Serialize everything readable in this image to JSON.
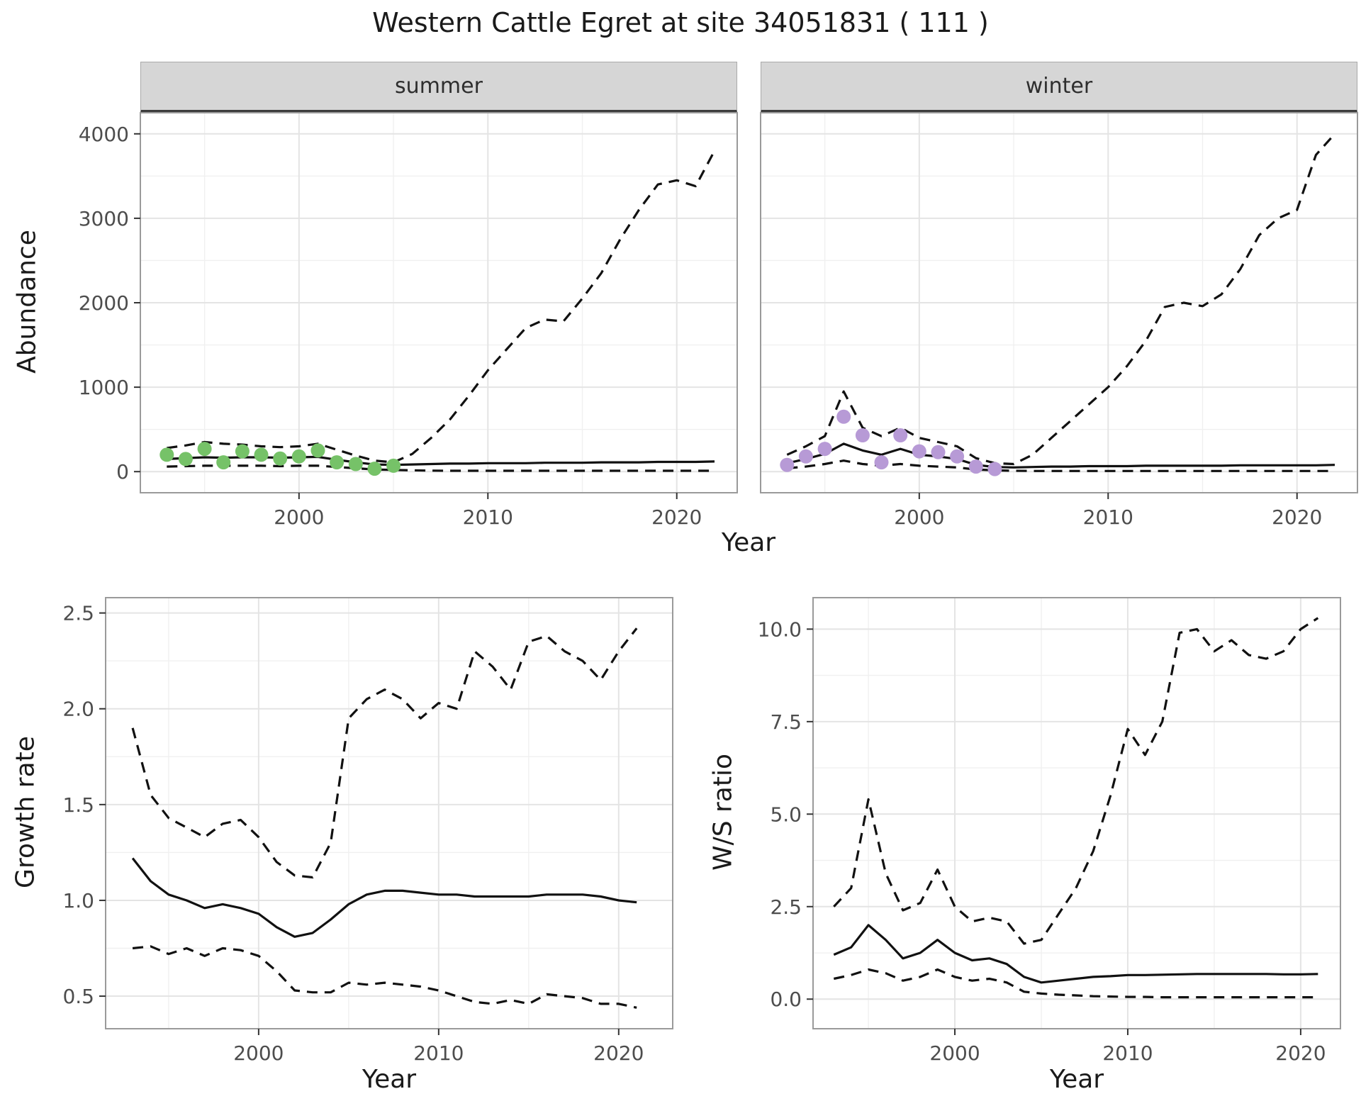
{
  "title": "Western Cattle Egret at site 34051831 ( 111 )",
  "colors": {
    "summer_points": "#76c268",
    "winter_points": "#b79ad6",
    "line": "#111111",
    "strip_background": "#d6d6d6",
    "grid_major": "#e4e4e4",
    "grid_minor": "#f0f0f0",
    "panel_border": "#9a9a9a",
    "tick_text": "#4d4d4d"
  },
  "chart_data": [
    {
      "id": "summer",
      "type": "line",
      "facet": "summer",
      "xlabel": "Year",
      "ylabel": "Abundance",
      "xlim": [
        1991.6,
        2023.2
      ],
      "ylim": [
        -250,
        4250
      ],
      "xticks": [
        2000,
        2010,
        2020
      ],
      "xtick_labels": [
        "2000",
        "2010",
        "2020"
      ],
      "yticks": [
        0,
        1000,
        2000,
        3000,
        4000
      ],
      "ytick_labels": [
        "0",
        "1000",
        "2000",
        "3000",
        "4000"
      ],
      "grid": true,
      "series": [
        {
          "name": "upper-ci",
          "style": "dashed",
          "x": [
            1993,
            1994,
            1995,
            1996,
            1997,
            1998,
            1999,
            2000,
            2001,
            2002,
            2003,
            2004,
            2005,
            2006,
            2007,
            2008,
            2009,
            2010,
            2011,
            2012,
            2013,
            2014,
            2015,
            2016,
            2017,
            2018,
            2019,
            2020,
            2021,
            2022
          ],
          "y": [
            280,
            310,
            350,
            330,
            320,
            300,
            290,
            300,
            330,
            260,
            190,
            130,
            110,
            210,
            400,
            620,
            900,
            1200,
            1450,
            1700,
            1800,
            1780,
            2050,
            2350,
            2750,
            3100,
            3400,
            3450,
            3380,
            3800
          ]
        },
        {
          "name": "median",
          "style": "solid",
          "x": [
            1993,
            1994,
            1995,
            1996,
            1997,
            1998,
            1999,
            2000,
            2001,
            2002,
            2003,
            2004,
            2005,
            2006,
            2007,
            2008,
            2009,
            2010,
            2011,
            2012,
            2013,
            2014,
            2015,
            2016,
            2017,
            2018,
            2019,
            2020,
            2021,
            2022
          ],
          "y": [
            150,
            160,
            170,
            165,
            170,
            170,
            165,
            170,
            175,
            140,
            110,
            85,
            80,
            85,
            90,
            95,
            95,
            100,
            100,
            100,
            105,
            105,
            105,
            110,
            110,
            110,
            115,
            115,
            115,
            120
          ]
        },
        {
          "name": "lower-ci",
          "style": "dashed",
          "x": [
            1993,
            1994,
            1995,
            1996,
            1997,
            1998,
            1999,
            2000,
            2001,
            2002,
            2003,
            2004,
            2005,
            2006,
            2007,
            2008,
            2009,
            2010,
            2011,
            2012,
            2013,
            2014,
            2015,
            2016,
            2017,
            2018,
            2019,
            2020,
            2021,
            2022
          ],
          "y": [
            60,
            65,
            70,
            70,
            70,
            70,
            65,
            70,
            70,
            55,
            40,
            25,
            20,
            15,
            12,
            10,
            10,
            10,
            10,
            10,
            10,
            10,
            10,
            10,
            10,
            10,
            10,
            10,
            10,
            10
          ]
        },
        {
          "name": "observed-points",
          "style": "points",
          "color": "#76c268",
          "x": [
            1993,
            1994,
            1995,
            1996,
            1997,
            1998,
            1999,
            2000,
            2001,
            2002,
            2003,
            2004,
            2005
          ],
          "y": [
            200,
            150,
            270,
            110,
            240,
            200,
            155,
            180,
            250,
            110,
            90,
            35,
            70
          ]
        }
      ]
    },
    {
      "id": "winter",
      "type": "line",
      "facet": "winter",
      "xlabel": "Year",
      "ylabel": "Abundance",
      "xlim": [
        1991.6,
        2023.2
      ],
      "ylim": [
        -250,
        4250
      ],
      "xticks": [
        2000,
        2010,
        2020
      ],
      "xtick_labels": [
        "2000",
        "2010",
        "2020"
      ],
      "yticks": [
        0,
        1000,
        2000,
        3000,
        4000
      ],
      "ytick_labels": [
        "0",
        "1000",
        "2000",
        "3000",
        "4000"
      ],
      "grid": true,
      "series": [
        {
          "name": "upper-ci",
          "style": "dashed",
          "x": [
            1993,
            1994,
            1995,
            1996,
            1997,
            1998,
            1999,
            2000,
            2001,
            2002,
            2003,
            2004,
            2005,
            2006,
            2007,
            2008,
            2009,
            2010,
            2011,
            2012,
            2013,
            2014,
            2015,
            2016,
            2017,
            2018,
            2019,
            2020,
            2021,
            2022
          ],
          "y": [
            200,
            300,
            420,
            950,
            520,
            420,
            520,
            400,
            350,
            300,
            160,
            100,
            90,
            200,
            400,
            600,
            800,
            1000,
            1250,
            1550,
            1950,
            2000,
            1960,
            2100,
            2400,
            2800,
            3000,
            3100,
            3750,
            4000
          ]
        },
        {
          "name": "median",
          "style": "solid",
          "x": [
            1993,
            1994,
            1995,
            1996,
            1997,
            1998,
            1999,
            2000,
            2001,
            2002,
            2003,
            2004,
            2005,
            2006,
            2007,
            2008,
            2009,
            2010,
            2011,
            2012,
            2013,
            2014,
            2015,
            2016,
            2017,
            2018,
            2019,
            2020,
            2021,
            2022
          ],
          "y": [
            100,
            150,
            210,
            330,
            250,
            200,
            270,
            200,
            180,
            150,
            80,
            55,
            50,
            55,
            60,
            60,
            65,
            65,
            65,
            70,
            70,
            70,
            70,
            70,
            75,
            75,
            75,
            75,
            75,
            80
          ]
        },
        {
          "name": "lower-ci",
          "style": "dashed",
          "x": [
            1993,
            1994,
            1995,
            1996,
            1997,
            1998,
            1999,
            2000,
            2001,
            2002,
            2003,
            2004,
            2005,
            2006,
            2007,
            2008,
            2009,
            2010,
            2011,
            2012,
            2013,
            2014,
            2015,
            2016,
            2017,
            2018,
            2019,
            2020,
            2021,
            2022
          ],
          "y": [
            40,
            60,
            90,
            130,
            90,
            70,
            90,
            70,
            60,
            50,
            25,
            15,
            10,
            8,
            8,
            8,
            8,
            8,
            8,
            8,
            8,
            8,
            8,
            8,
            8,
            8,
            8,
            8,
            8,
            8
          ]
        },
        {
          "name": "observed-points",
          "style": "points",
          "color": "#b79ad6",
          "x": [
            1993,
            1994,
            1995,
            1996,
            1997,
            1998,
            1999,
            2000,
            2001,
            2002,
            2003,
            2004
          ],
          "y": [
            80,
            180,
            270,
            650,
            430,
            110,
            430,
            240,
            230,
            180,
            60,
            30
          ]
        }
      ]
    },
    {
      "id": "growth",
      "type": "line",
      "facet": "",
      "xlabel": "Year",
      "ylabel": "Growth rate",
      "xlim": [
        1991.5,
        2023.0
      ],
      "ylim": [
        0.33,
        2.58
      ],
      "xticks": [
        2000,
        2010,
        2020
      ],
      "xtick_labels": [
        "2000",
        "2010",
        "2020"
      ],
      "yticks": [
        0.5,
        1.0,
        1.5,
        2.0,
        2.5
      ],
      "ytick_labels": [
        "0.5",
        "1.0",
        "1.5",
        "2.0",
        "2.5"
      ],
      "grid": true,
      "series": [
        {
          "name": "upper-ci",
          "style": "dashed",
          "x": [
            1993,
            1994,
            1995,
            1996,
            1997,
            1998,
            1999,
            2000,
            2001,
            2002,
            2003,
            2004,
            2005,
            2006,
            2007,
            2008,
            2009,
            2010,
            2011,
            2012,
            2013,
            2014,
            2015,
            2016,
            2017,
            2018,
            2019,
            2020,
            2021
          ],
          "y": [
            1.9,
            1.55,
            1.43,
            1.38,
            1.33,
            1.4,
            1.42,
            1.33,
            1.2,
            1.13,
            1.12,
            1.3,
            1.95,
            2.05,
            2.1,
            2.05,
            1.95,
            2.03,
            2.0,
            2.3,
            2.22,
            2.1,
            2.35,
            2.38,
            2.3,
            2.25,
            2.15,
            2.3,
            2.42
          ]
        },
        {
          "name": "median",
          "style": "solid",
          "x": [
            1993,
            1994,
            1995,
            1996,
            1997,
            1998,
            1999,
            2000,
            2001,
            2002,
            2003,
            2004,
            2005,
            2006,
            2007,
            2008,
            2009,
            2010,
            2011,
            2012,
            2013,
            2014,
            2015,
            2016,
            2017,
            2018,
            2019,
            2020,
            2021
          ],
          "y": [
            1.22,
            1.1,
            1.03,
            1.0,
            0.96,
            0.98,
            0.96,
            0.93,
            0.86,
            0.81,
            0.83,
            0.9,
            0.98,
            1.03,
            1.05,
            1.05,
            1.04,
            1.03,
            1.03,
            1.02,
            1.02,
            1.02,
            1.02,
            1.03,
            1.03,
            1.03,
            1.02,
            1.0,
            0.99
          ]
        },
        {
          "name": "lower-ci",
          "style": "dashed",
          "x": [
            1993,
            1994,
            1995,
            1996,
            1997,
            1998,
            1999,
            2000,
            2001,
            2002,
            2003,
            2004,
            2005,
            2006,
            2007,
            2008,
            2009,
            2010,
            2011,
            2012,
            2013,
            2014,
            2015,
            2016,
            2017,
            2018,
            2019,
            2020,
            2021
          ],
          "y": [
            0.75,
            0.76,
            0.72,
            0.75,
            0.71,
            0.75,
            0.74,
            0.71,
            0.63,
            0.53,
            0.52,
            0.52,
            0.57,
            0.56,
            0.57,
            0.56,
            0.55,
            0.53,
            0.5,
            0.47,
            0.46,
            0.48,
            0.46,
            0.51,
            0.5,
            0.49,
            0.46,
            0.46,
            0.44
          ]
        }
      ]
    },
    {
      "id": "ws",
      "type": "line",
      "facet": "",
      "xlabel": "Year",
      "ylabel": "W/S ratio",
      "xlim": [
        1991.8,
        2022.3
      ],
      "ylim": [
        -0.8,
        10.85
      ],
      "xticks": [
        2000,
        2010,
        2020
      ],
      "xtick_labels": [
        "2000",
        "2010",
        "2020"
      ],
      "yticks": [
        0.0,
        2.5,
        5.0,
        7.5,
        10.0
      ],
      "ytick_labels": [
        "0.0",
        "2.5",
        "5.0",
        "7.5",
        "10.0"
      ],
      "grid": true,
      "series": [
        {
          "name": "upper-ci",
          "style": "dashed",
          "x": [
            1993,
            1994,
            1995,
            1996,
            1997,
            1998,
            1999,
            2000,
            2001,
            2002,
            2003,
            2004,
            2005,
            2006,
            2007,
            2008,
            2009,
            2010,
            2011,
            2012,
            2013,
            2014,
            2015,
            2016,
            2017,
            2018,
            2019,
            2020,
            2021
          ],
          "y": [
            2.5,
            3.0,
            5.4,
            3.4,
            2.4,
            2.6,
            3.5,
            2.5,
            2.1,
            2.2,
            2.1,
            1.5,
            1.6,
            2.3,
            3.0,
            4.0,
            5.5,
            7.3,
            6.6,
            7.5,
            9.9,
            10.0,
            9.4,
            9.7,
            9.3,
            9.2,
            9.4,
            10.0,
            10.3
          ]
        },
        {
          "name": "median",
          "style": "solid",
          "x": [
            1993,
            1994,
            1995,
            1996,
            1997,
            1998,
            1999,
            2000,
            2001,
            2002,
            2003,
            2004,
            2005,
            2006,
            2007,
            2008,
            2009,
            2010,
            2011,
            2012,
            2013,
            2014,
            2015,
            2016,
            2017,
            2018,
            2019,
            2020,
            2021
          ],
          "y": [
            1.2,
            1.4,
            2.0,
            1.6,
            1.1,
            1.25,
            1.6,
            1.25,
            1.05,
            1.1,
            0.95,
            0.6,
            0.45,
            0.5,
            0.55,
            0.6,
            0.62,
            0.65,
            0.65,
            0.66,
            0.67,
            0.68,
            0.68,
            0.68,
            0.68,
            0.68,
            0.67,
            0.67,
            0.68
          ]
        },
        {
          "name": "lower-ci",
          "style": "dashed",
          "x": [
            1993,
            1994,
            1995,
            1996,
            1997,
            1998,
            1999,
            2000,
            2001,
            2002,
            2003,
            2004,
            2005,
            2006,
            2007,
            2008,
            2009,
            2010,
            2011,
            2012,
            2013,
            2014,
            2015,
            2016,
            2017,
            2018,
            2019,
            2020,
            2021
          ],
          "y": [
            0.55,
            0.65,
            0.8,
            0.7,
            0.5,
            0.6,
            0.8,
            0.6,
            0.5,
            0.55,
            0.45,
            0.2,
            0.15,
            0.12,
            0.1,
            0.08,
            0.07,
            0.06,
            0.06,
            0.05,
            0.05,
            0.05,
            0.05,
            0.05,
            0.05,
            0.05,
            0.05,
            0.05,
            0.05
          ]
        }
      ]
    }
  ]
}
